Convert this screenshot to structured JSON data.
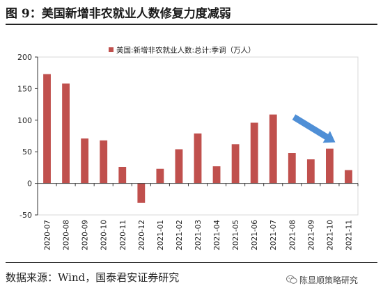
{
  "header": {
    "title": "图 9：美国新增非农就业人数修复力度减弱"
  },
  "chart_data": {
    "type": "bar",
    "categories": [
      "2020-07",
      "2020-08",
      "2020-09",
      "2020-10",
      "2020-11",
      "2020-12",
      "2021-01",
      "2021-02",
      "2021-03",
      "2021-04",
      "2021-05",
      "2021-06",
      "2021-07",
      "2021-08",
      "2021-09",
      "2021-10",
      "2021-11"
    ],
    "series": [
      {
        "name": "美国:新增非农就业人数:总计:季调（万人）",
        "values": [
          173,
          158,
          71,
          68,
          26,
          -31,
          23,
          54,
          79,
          27,
          62,
          96,
          109,
          48,
          38,
          55,
          21
        ],
        "color": "#c0504d"
      }
    ],
    "ylim": [
      -50,
      200
    ],
    "yticks": [
      "-50",
      "0",
      "50",
      "100",
      "150",
      "200"
    ],
    "grid": false,
    "legend_position": "top",
    "annotation": {
      "type": "arrow",
      "color": "#4f8fd6"
    }
  },
  "footer": {
    "source": "数据来源：Wind，国泰君安证券研究",
    "watermark": "陈显顺策略研究"
  }
}
